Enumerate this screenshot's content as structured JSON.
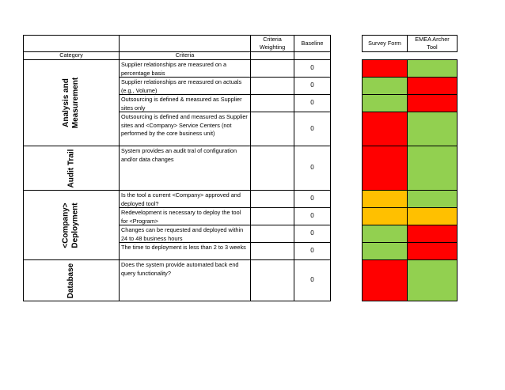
{
  "header": {
    "criteria_weighting": "Criteria Weighting",
    "baseline": "Baseline",
    "survey_form": "Survey Form",
    "emea_archer_tool": "EMEA Archer Tool",
    "category": "Category",
    "criteria": "Criteria"
  },
  "categories": [
    {
      "name": "Analysis and\nMeasurement"
    },
    {
      "name": "Audit Trail"
    },
    {
      "name": "<Company>\nDeployment"
    },
    {
      "name": "Database"
    }
  ],
  "rows": [
    {
      "criteria": "Supplier relationships are measured on a percentage basis",
      "baseline": "0",
      "survey_form": "red",
      "emea_archer": "green"
    },
    {
      "criteria": "Supplier relationships are measured on actuals (e.g., Volume)",
      "baseline": "0",
      "survey_form": "green",
      "emea_archer": "red"
    },
    {
      "criteria": "Outsourcing is defined & measured as Supplier sites only",
      "baseline": "0",
      "survey_form": "green",
      "emea_archer": "red"
    },
    {
      "criteria": "Outsourcing is defined and measured as Supplier sites and <Company> Service Centers (not performed by the core business unit)",
      "baseline": "0",
      "survey_form": "red",
      "emea_archer": "green"
    },
    {
      "criteria": "System provides an audit tral of configuration and/or data changes",
      "baseline": "0",
      "survey_form": "red",
      "emea_archer": "green"
    },
    {
      "criteria": "Is the tool a current <Company> approved and deployed tool?",
      "baseline": "0",
      "survey_form": "amber",
      "emea_archer": "green"
    },
    {
      "criteria": "Redevelopment is necessary to deploy the tool for <Program>",
      "baseline": "0",
      "survey_form": "amber",
      "emea_archer": "amber"
    },
    {
      "criteria": "Changes can be requested and deployed within 24 to 48 business hours",
      "baseline": "0",
      "survey_form": "green",
      "emea_archer": "red"
    },
    {
      "criteria": "The time to deployment is less than 2 to 3 weeks",
      "baseline": "0",
      "survey_form": "green",
      "emea_archer": "red"
    },
    {
      "criteria": "Does the system provide automated back end query functionality?",
      "baseline": "0",
      "survey_form": "red",
      "emea_archer": "green"
    }
  ],
  "colors": {
    "red": "#ff0000",
    "green": "#92d050",
    "amber": "#ffc000"
  }
}
